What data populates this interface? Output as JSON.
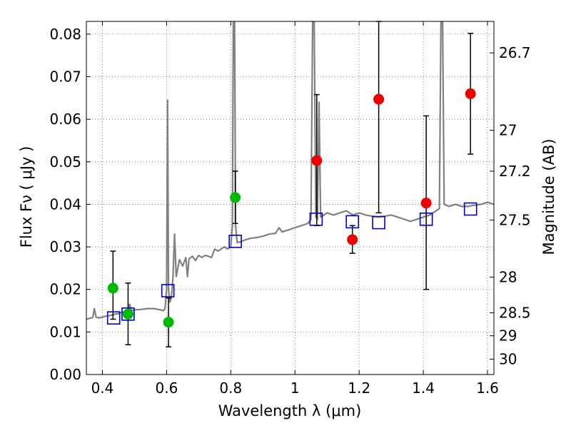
{
  "chart_data": {
    "type": "scatter",
    "title": "",
    "xlabel": "Wavelength  λ (μm)",
    "ylabel": "Flux  Fν  ( μJy )",
    "ylabel_right": "Magnitude (AB)",
    "xlim": [
      0.35,
      1.62
    ],
    "ylim": [
      0.0,
      0.083
    ],
    "grid": true,
    "x_ticks": [
      0.4,
      0.6,
      0.8,
      1.0,
      1.2,
      1.4,
      1.6
    ],
    "x_tick_labels": [
      "0.4",
      "0.6",
      "0.8",
      "1",
      "1.2",
      "1.4",
      "1.6"
    ],
    "y_ticks": [
      0.0,
      0.01,
      0.02,
      0.03,
      0.04,
      0.05,
      0.06,
      0.07,
      0.08
    ],
    "y_tick_labels": [
      "0.00",
      "0.01",
      "0.02",
      "0.03",
      "0.04",
      "0.05",
      "0.06",
      "0.07",
      "0.08"
    ],
    "right_ticks": [
      {
        "label": "26.7",
        "flux": 0.0756
      },
      {
        "label": "27",
        "flux": 0.0574
      },
      {
        "label": "27.2",
        "flux": 0.0478
      },
      {
        "label": "27.5",
        "flux": 0.0363
      },
      {
        "label": "28",
        "flux": 0.0229
      },
      {
        "label": "28.5",
        "flux": 0.0145
      },
      {
        "label": "29",
        "flux": 0.0091
      },
      {
        "label": "30",
        "flux": 0.0036
      }
    ],
    "model_spectrum": {
      "name": "model SED",
      "color": "#808080",
      "points": [
        [
          0.35,
          0.013
        ],
        [
          0.36,
          0.0132
        ],
        [
          0.37,
          0.0134
        ],
        [
          0.375,
          0.0155
        ],
        [
          0.38,
          0.0135
        ],
        [
          0.39,
          0.0133
        ],
        [
          0.4,
          0.0135
        ],
        [
          0.41,
          0.0137
        ],
        [
          0.42,
          0.0138
        ],
        [
          0.43,
          0.014
        ],
        [
          0.44,
          0.0142
        ],
        [
          0.45,
          0.0143
        ],
        [
          0.46,
          0.0146
        ],
        [
          0.47,
          0.0148
        ],
        [
          0.48,
          0.015
        ],
        [
          0.485,
          0.0165
        ],
        [
          0.49,
          0.015
        ],
        [
          0.5,
          0.0152
        ],
        [
          0.52,
          0.0153
        ],
        [
          0.54,
          0.0155
        ],
        [
          0.56,
          0.0155
        ],
        [
          0.58,
          0.0152
        ],
        [
          0.59,
          0.015
        ],
        [
          0.595,
          0.0155
        ],
        [
          0.6,
          0.02
        ],
        [
          0.603,
          0.0645
        ],
        [
          0.606,
          0.02
        ],
        [
          0.61,
          0.017
        ],
        [
          0.615,
          0.018
        ],
        [
          0.62,
          0.023
        ],
        [
          0.625,
          0.033
        ],
        [
          0.63,
          0.023
        ],
        [
          0.64,
          0.027
        ],
        [
          0.65,
          0.0255
        ],
        [
          0.66,
          0.0275
        ],
        [
          0.665,
          0.023
        ],
        [
          0.67,
          0.0272
        ],
        [
          0.68,
          0.0278
        ],
        [
          0.69,
          0.0268
        ],
        [
          0.7,
          0.028
        ],
        [
          0.71,
          0.0275
        ],
        [
          0.72,
          0.028
        ],
        [
          0.73,
          0.0278
        ],
        [
          0.74,
          0.0275
        ],
        [
          0.75,
          0.0295
        ],
        [
          0.76,
          0.029
        ],
        [
          0.77,
          0.0295
        ],
        [
          0.78,
          0.03
        ],
        [
          0.79,
          0.0295
        ],
        [
          0.8,
          0.03
        ],
        [
          0.805,
          0.035
        ],
        [
          0.808,
          0.083
        ],
        [
          0.812,
          0.083
        ],
        [
          0.815,
          0.035
        ],
        [
          0.82,
          0.031
        ],
        [
          0.83,
          0.0312
        ],
        [
          0.84,
          0.0315
        ],
        [
          0.86,
          0.032
        ],
        [
          0.88,
          0.0322
        ],
        [
          0.9,
          0.0325
        ],
        [
          0.92,
          0.033
        ],
        [
          0.94,
          0.0332
        ],
        [
          0.95,
          0.0345
        ],
        [
          0.96,
          0.0335
        ],
        [
          0.98,
          0.034
        ],
        [
          1.0,
          0.0345
        ],
        [
          1.02,
          0.035
        ],
        [
          1.04,
          0.0355
        ],
        [
          1.05,
          0.0365
        ],
        [
          1.055,
          0.083
        ],
        [
          1.06,
          0.083
        ],
        [
          1.065,
          0.037
        ],
        [
          1.07,
          0.0365
        ],
        [
          1.075,
          0.064
        ],
        [
          1.08,
          0.037
        ],
        [
          1.09,
          0.0375
        ],
        [
          1.1,
          0.038
        ],
        [
          1.12,
          0.0375
        ],
        [
          1.14,
          0.038
        ],
        [
          1.16,
          0.0385
        ],
        [
          1.18,
          0.0375
        ],
        [
          1.2,
          0.038
        ],
        [
          1.22,
          0.0375
        ],
        [
          1.24,
          0.0372
        ],
        [
          1.26,
          0.037
        ],
        [
          1.28,
          0.0372
        ],
        [
          1.3,
          0.0375
        ],
        [
          1.32,
          0.037
        ],
        [
          1.34,
          0.0365
        ],
        [
          1.36,
          0.036
        ],
        [
          1.38,
          0.0365
        ],
        [
          1.4,
          0.037
        ],
        [
          1.42,
          0.0375
        ],
        [
          1.44,
          0.0385
        ],
        [
          1.45,
          0.039
        ],
        [
          1.455,
          0.083
        ],
        [
          1.46,
          0.083
        ],
        [
          1.465,
          0.04
        ],
        [
          1.48,
          0.0395
        ],
        [
          1.5,
          0.04
        ],
        [
          1.52,
          0.0395
        ],
        [
          1.54,
          0.0395
        ],
        [
          1.56,
          0.0398
        ],
        [
          1.58,
          0.04
        ],
        [
          1.6,
          0.0405
        ],
        [
          1.62,
          0.04
        ]
      ]
    },
    "series": [
      {
        "name": "green detections",
        "color": "#00bb00",
        "marker": "circle",
        "points": [
          {
            "x": 0.433,
            "y": 0.0203,
            "yerr_low": 0.013,
            "yerr_high": 0.029
          },
          {
            "x": 0.48,
            "y": 0.0142,
            "yerr_low": 0.007,
            "yerr_high": 0.0215
          },
          {
            "x": 0.606,
            "y": 0.0123,
            "yerr_low": 0.0065,
            "yerr_high": 0.018
          },
          {
            "x": 0.814,
            "y": 0.0416,
            "yerr_low": 0.0355,
            "yerr_high": 0.0478
          }
        ]
      },
      {
        "name": "red detections",
        "color": "#ee0000",
        "marker": "circle",
        "points": [
          {
            "x": 1.068,
            "y": 0.0503,
            "yerr_low": 0.035,
            "yerr_high": 0.0658
          },
          {
            "x": 1.179,
            "y": 0.0317,
            "yerr_low": 0.0285,
            "yerr_high": 0.035
          },
          {
            "x": 1.261,
            "y": 0.0647,
            "yerr_low": 0.038,
            "yerr_high": 0.083
          },
          {
            "x": 1.409,
            "y": 0.0403,
            "yerr_low": 0.02,
            "yerr_high": 0.0608
          },
          {
            "x": 1.547,
            "y": 0.066,
            "yerr_low": 0.0518,
            "yerr_high": 0.0802
          }
        ]
      },
      {
        "name": "model photometry",
        "color": "#0000cc",
        "marker": "open-square",
        "points": [
          {
            "x": 0.435,
            "y": 0.0133
          },
          {
            "x": 0.48,
            "y": 0.0142
          },
          {
            "x": 0.604,
            "y": 0.0197
          },
          {
            "x": 0.814,
            "y": 0.0313
          },
          {
            "x": 1.066,
            "y": 0.0365
          },
          {
            "x": 1.179,
            "y": 0.0359
          },
          {
            "x": 1.261,
            "y": 0.0357
          },
          {
            "x": 1.409,
            "y": 0.0365
          },
          {
            "x": 1.547,
            "y": 0.0389
          }
        ]
      }
    ]
  }
}
